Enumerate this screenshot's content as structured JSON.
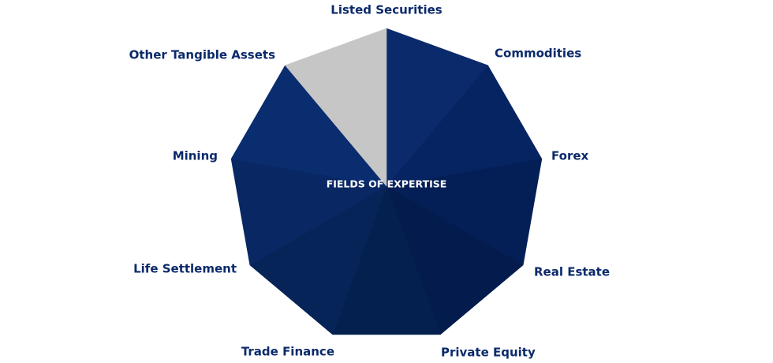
{
  "title": "FIELDS OF EXPERTISE",
  "segments": [
    {
      "label": "Listed Securities"
    },
    {
      "label": "Commodities"
    },
    {
      "label": "Forex"
    },
    {
      "label": "Real Estate"
    },
    {
      "label": "Private Equity"
    },
    {
      "label": "Trade Finance"
    },
    {
      "label": "Life Settlement"
    },
    {
      "label": "Mining"
    },
    {
      "label": "Other Tangible Assets"
    }
  ]
}
